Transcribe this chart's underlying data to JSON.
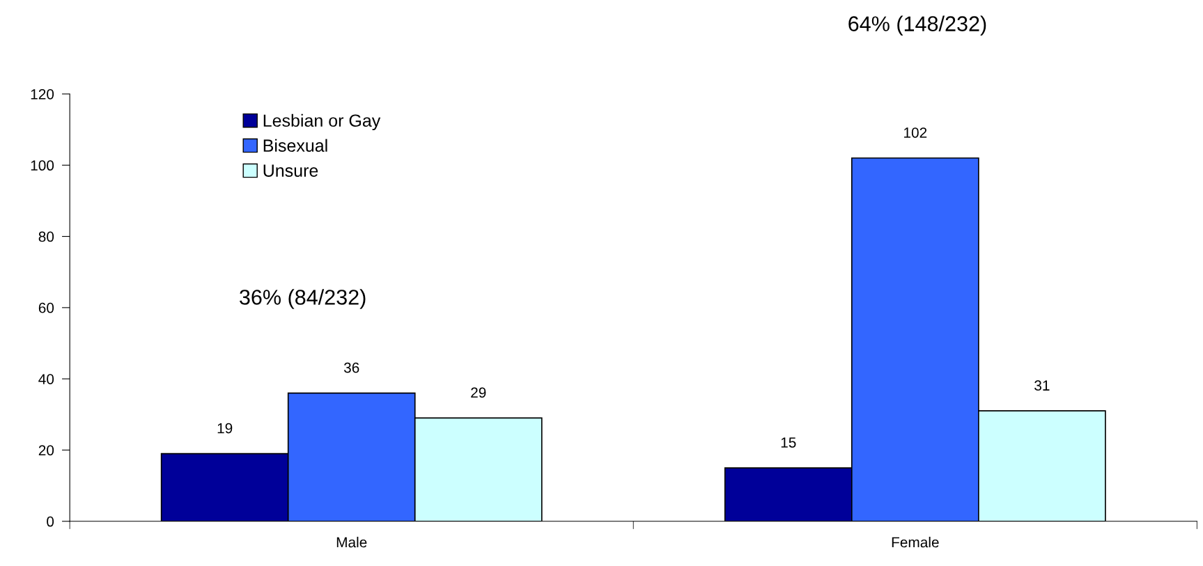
{
  "chart_data": {
    "type": "bar",
    "categories": [
      "Male",
      "Female"
    ],
    "series": [
      {
        "name": "Lesbian or Gay",
        "color": "#000099",
        "values": [
          19,
          15
        ]
      },
      {
        "name": "Bisexual",
        "color": "#3366ff",
        "values": [
          36,
          102
        ]
      },
      {
        "name": "Unsure",
        "color": "#ccffff",
        "values": [
          29,
          31
        ]
      }
    ],
    "ylim": [
      0,
      120
    ],
    "yticks": [
      0,
      20,
      40,
      60,
      80,
      100,
      120
    ],
    "grid": false,
    "legend": "top left",
    "data_labels": true,
    "annotations": [
      "36% (84/232)",
      "64% (148/232)"
    ]
  }
}
